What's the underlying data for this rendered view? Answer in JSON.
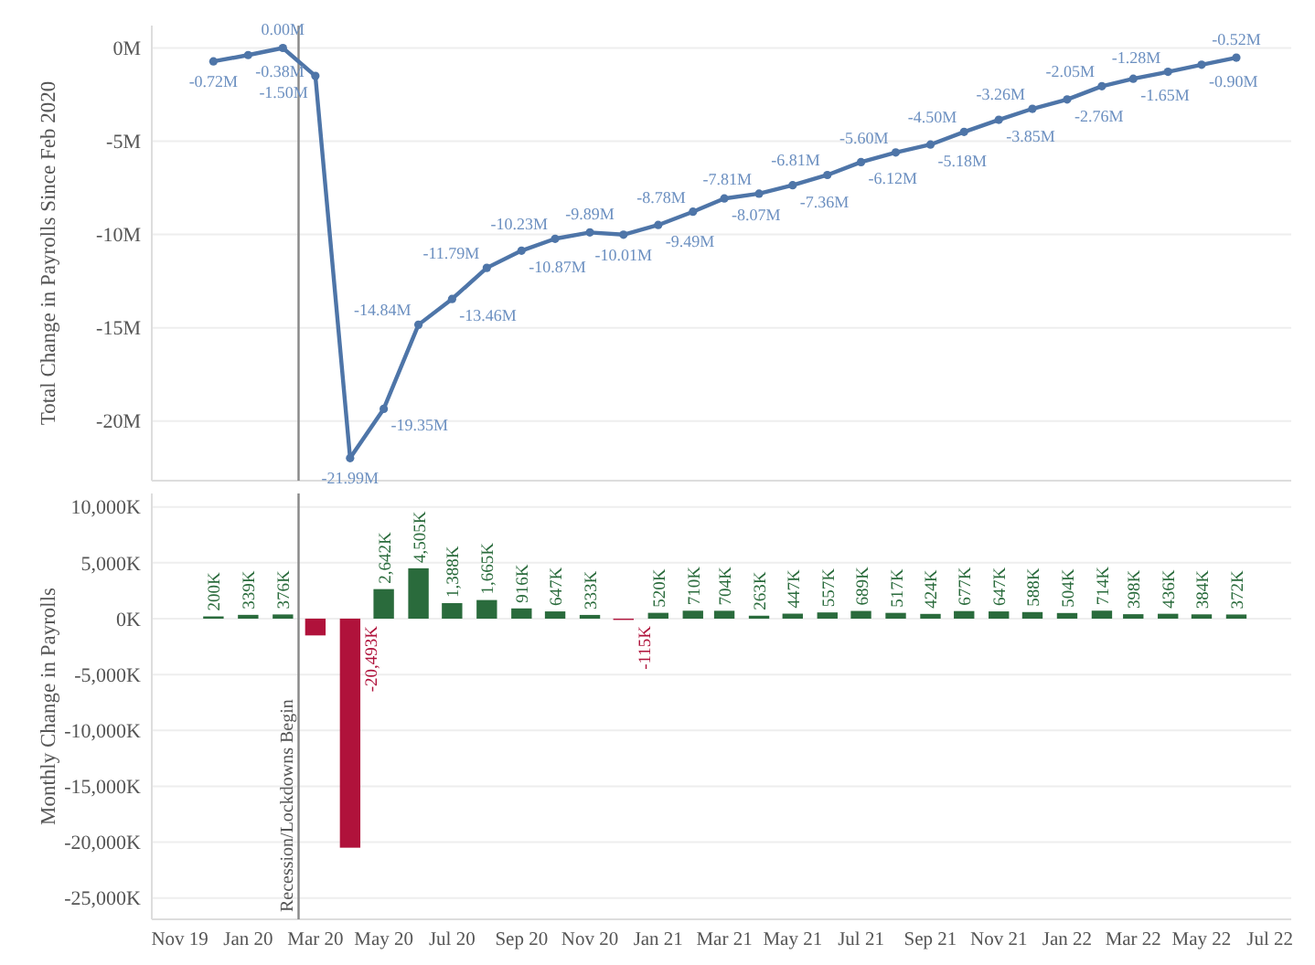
{
  "chart_data": [
    {
      "type": "line",
      "ylabel": "Total Change in Payrolls Since Feb 2020",
      "x": [
        "2019-12",
        "2020-01",
        "2020-02",
        "2020-03",
        "2020-04",
        "2020-05",
        "2020-06",
        "2020-07",
        "2020-08",
        "2020-09",
        "2020-10",
        "2020-11",
        "2020-12",
        "2021-01",
        "2021-02",
        "2021-03",
        "2021-04",
        "2021-05",
        "2021-06",
        "2021-07",
        "2021-08",
        "2021-09",
        "2021-10",
        "2021-11",
        "2021-12",
        "2022-01",
        "2022-02",
        "2022-03",
        "2022-04",
        "2022-05",
        "2022-06"
      ],
      "series": [
        {
          "color": "#4e75a8",
          "values": [
            -0.72,
            -0.38,
            0.0,
            -1.5,
            -21.99,
            -19.35,
            -14.84,
            -13.46,
            -11.79,
            -10.87,
            -10.23,
            -9.89,
            -10.01,
            -9.49,
            -8.78,
            -8.07,
            -7.81,
            -7.36,
            -6.81,
            -6.12,
            -5.6,
            -5.18,
            -4.5,
            -3.85,
            -3.26,
            -2.76,
            -2.05,
            -1.65,
            -1.28,
            -0.9,
            -0.52
          ],
          "value_labels": [
            "-0.72M",
            "-0.38M",
            "0.00M",
            "-1.50M",
            "-21.99M",
            "-19.35M",
            "-14.84M",
            "-13.46M",
            "-11.79M",
            "-10.87M",
            "-10.23M",
            "-9.89M",
            "-10.01M",
            "-9.49M",
            "-8.78M",
            "-8.07M",
            "-7.81M",
            "-7.36M",
            "-6.81M",
            "-6.12M",
            "-5.60M",
            "-5.18M",
            "-4.50M",
            "-3.85M",
            "-3.26M",
            "-2.76M",
            "-2.05M",
            "-1.65M",
            "-1.28M",
            "-0.90M",
            "-0.52M"
          ]
        }
      ],
      "ylim": [
        -23.2,
        1.2
      ],
      "yticks": [
        {
          "value": 0,
          "label": "0M"
        },
        {
          "value": -5,
          "label": "-5M"
        },
        {
          "value": -10,
          "label": "-10M"
        },
        {
          "value": -15,
          "label": "-15M"
        },
        {
          "value": -20,
          "label": "-20M"
        }
      ],
      "xlim": [
        "2019-10-07",
        "2022-07-20"
      ],
      "tick_labels": "y",
      "grid": "y",
      "marker": "circle",
      "ref_lines": [
        {
          "axis": "x",
          "value": "2020-02-15",
          "color": "#888888"
        }
      ]
    },
    {
      "type": "bar",
      "ylabel": "Monthly Change in Payrolls",
      "x": [
        "2019-12",
        "2020-01",
        "2020-02",
        "2020-03",
        "2020-04",
        "2020-05",
        "2020-06",
        "2020-07",
        "2020-08",
        "2020-09",
        "2020-10",
        "2020-11",
        "2020-12",
        "2021-01",
        "2021-02",
        "2021-03",
        "2021-04",
        "2021-05",
        "2021-06",
        "2021-07",
        "2021-08",
        "2021-09",
        "2021-10",
        "2021-11",
        "2021-12",
        "2022-01",
        "2022-02",
        "2022-03",
        "2022-04",
        "2022-05",
        "2022-06"
      ],
      "values": [
        200,
        339,
        376,
        -1500,
        -20493,
        2642,
        4505,
        1388,
        1665,
        916,
        647,
        333,
        -115,
        520,
        710,
        704,
        263,
        447,
        557,
        689,
        517,
        424,
        677,
        647,
        588,
        504,
        714,
        398,
        436,
        384,
        372
      ],
      "colors": [
        "#2a6b3c",
        "#2a6b3c",
        "#2a6b3c",
        "#b0123b",
        "#b0123b",
        "#2a6b3c",
        "#2a6b3c",
        "#2a6b3c",
        "#2a6b3c",
        "#2a6b3c",
        "#2a6b3c",
        "#2a6b3c",
        "#b0123b",
        "#2a6b3c",
        "#2a6b3c",
        "#2a6b3c",
        "#2a6b3c",
        "#2a6b3c",
        "#2a6b3c",
        "#2a6b3c",
        "#2a6b3c",
        "#2a6b3c",
        "#2a6b3c",
        "#2a6b3c",
        "#2a6b3c",
        "#2a6b3c",
        "#2a6b3c",
        "#2a6b3c",
        "#2a6b3c",
        "#2a6b3c",
        "#2a6b3c"
      ],
      "value_labels": [
        "200K",
        "339K",
        "376K",
        null,
        "-20,493K",
        "2,642K",
        "4,505K",
        "1,388K",
        "1,665K",
        "916K",
        "647K",
        "333K",
        "-115K",
        "520K",
        "710K",
        "704K",
        "263K",
        "447K",
        "557K",
        "689K",
        "517K",
        "424K",
        "677K",
        "647K",
        "588K",
        "504K",
        "714K",
        "398K",
        "436K",
        "384K",
        "372K"
      ],
      "ylim": [
        -26900,
        11200
      ],
      "yticks": [
        {
          "value": 10000,
          "label": "10,000K"
        },
        {
          "value": 5000,
          "label": "5,000K"
        },
        {
          "value": 0,
          "label": "0K"
        },
        {
          "value": -5000,
          "label": "-5,000K"
        },
        {
          "value": -10000,
          "label": "-10,000K"
        },
        {
          "value": -15000,
          "label": "-15,000K"
        },
        {
          "value": -20000,
          "label": "-20,000K"
        },
        {
          "value": -25000,
          "label": "-25,000K"
        }
      ],
      "xlim": [
        "2019-10-07",
        "2022-07-20"
      ],
      "xticks": [
        {
          "value": "2019-11",
          "label": "Nov 19"
        },
        {
          "value": "2020-01",
          "label": "Jan 20"
        },
        {
          "value": "2020-03",
          "label": "Mar 20"
        },
        {
          "value": "2020-05",
          "label": "May 20"
        },
        {
          "value": "2020-07",
          "label": "Jul 20"
        },
        {
          "value": "2020-09",
          "label": "Sep 20"
        },
        {
          "value": "2020-11",
          "label": "Nov 20"
        },
        {
          "value": "2021-01",
          "label": "Jan 21"
        },
        {
          "value": "2021-03",
          "label": "Mar 21"
        },
        {
          "value": "2021-05",
          "label": "May 21"
        },
        {
          "value": "2021-07",
          "label": "Jul 21"
        },
        {
          "value": "2021-09",
          "label": "Sep 21"
        },
        {
          "value": "2021-11",
          "label": "Nov 21"
        },
        {
          "value": "2022-01",
          "label": "Jan 22"
        },
        {
          "value": "2022-03",
          "label": "Mar 22"
        },
        {
          "value": "2022-05",
          "label": "May 22"
        },
        {
          "value": "2022-07",
          "label": "Jul 22"
        }
      ],
      "grid": "y",
      "ref_lines": [
        {
          "axis": "x",
          "value": "2020-02-15",
          "label": "Recession/Lockdowns Begin",
          "color": "#888888"
        }
      ]
    }
  ]
}
